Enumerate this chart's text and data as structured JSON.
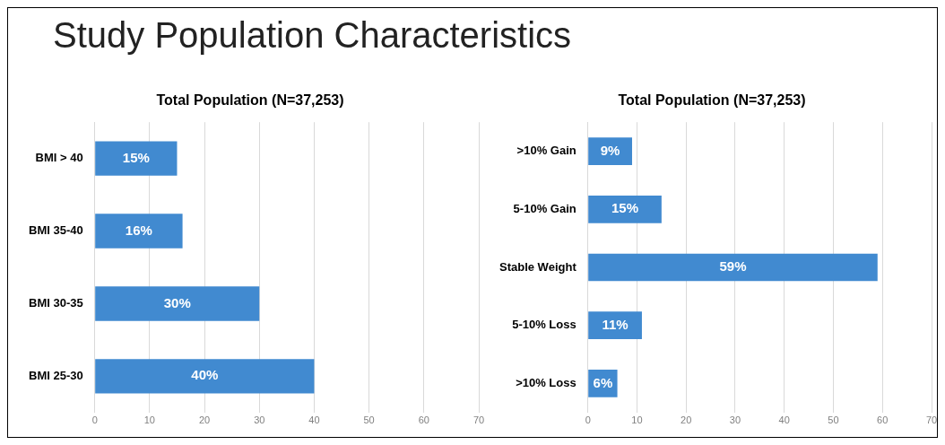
{
  "chart_data": [
    {
      "type": "bar",
      "orientation": "horizontal",
      "title": "Total Population (N=37,253)",
      "annotations": [
        "Study Population Characteristics"
      ],
      "categories": [
        "BMI > 40",
        "BMI 35-40",
        "BMI 30-35",
        "BMI 25-30"
      ],
      "values": [
        15,
        16,
        30,
        40
      ],
      "value_labels": [
        "15%",
        "16%",
        "30%",
        "40%"
      ],
      "color": "#418ad0",
      "xlim": [
        0,
        70
      ],
      "xticks": [
        0,
        10,
        20,
        30,
        40,
        50,
        60,
        70
      ],
      "grid": "x",
      "legend": false
    },
    {
      "type": "bar",
      "orientation": "horizontal",
      "title": "Total Population (N=37,253)",
      "categories": [
        ">10% Gain",
        "5-10% Gain",
        "Stable Weight",
        "5-10% Loss",
        ">10% Loss"
      ],
      "values": [
        9,
        15,
        59,
        11,
        6
      ],
      "value_labels": [
        "9%",
        "15%",
        "59%",
        "11%",
        "6%"
      ],
      "color": "#418ad0",
      "xlim": [
        0,
        70
      ],
      "xticks": [
        0,
        10,
        20,
        30,
        40,
        50,
        60,
        70
      ],
      "grid": "x",
      "legend": false
    }
  ]
}
